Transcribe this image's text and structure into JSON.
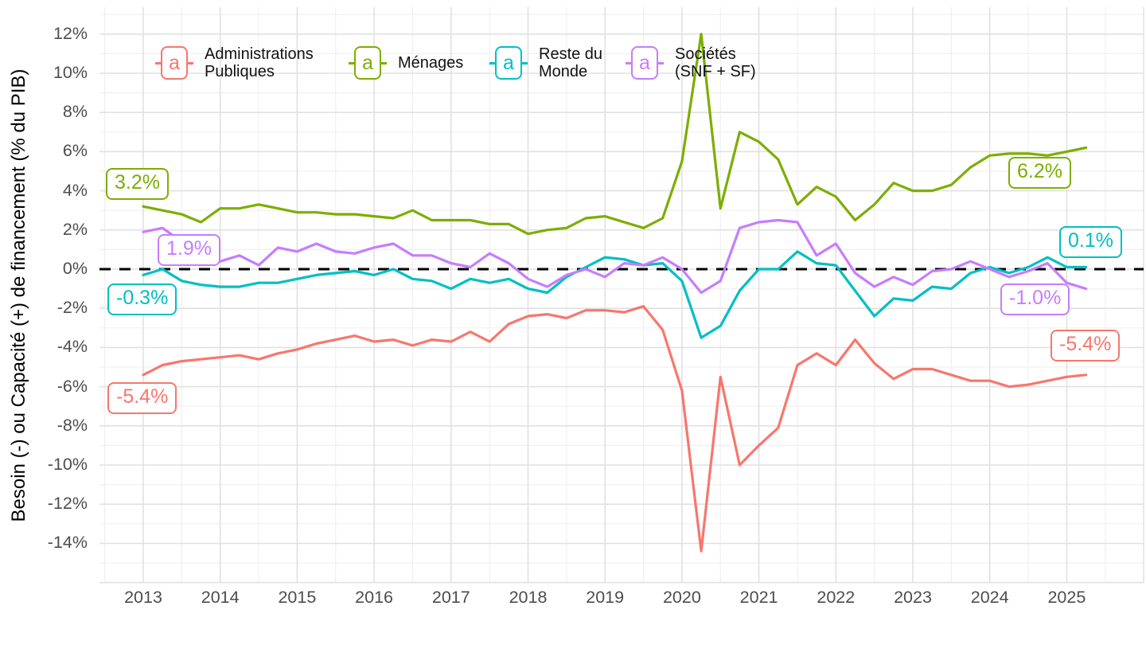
{
  "chart_data": {
    "type": "line",
    "title": "",
    "xlabel": "",
    "ylabel": "Besoin (-) ou Capacité (+) de financement (% du PIB)",
    "frequency": "quarterly",
    "x_start": "2013-Q1",
    "x_end": "2025-Q2",
    "x_tick_labels": [
      "2013",
      "2014",
      "2015",
      "2016",
      "2017",
      "2018",
      "2019",
      "2020",
      "2021",
      "2022",
      "2023",
      "2024",
      "2025"
    ],
    "y_tick_labels": [
      "12%",
      "10%",
      "8%",
      "6%",
      "4%",
      "2%",
      "0%",
      "-2%",
      "-4%",
      "-6%",
      "-8%",
      "-10%",
      "-12%",
      "-14%"
    ],
    "y_ticks_pct": [
      12,
      10,
      8,
      6,
      4,
      2,
      0,
      -2,
      -4,
      -6,
      -8,
      -10,
      -12,
      -14
    ],
    "ylim": [
      -16,
      13.4
    ],
    "grid": {
      "major_color": "#E1E1E1",
      "minor_color": "#F0F0F0",
      "background": "#FFFFFF"
    },
    "zero_line": {
      "value": 0,
      "style": "dashed",
      "color": "#000000"
    },
    "legend_position": "top",
    "series": [
      {
        "name": "Administrations Publiques",
        "slug": "administrations-publiques",
        "color": "#F8766D",
        "start_label": "-5.4%",
        "end_label": "-5.4%",
        "values": [
          -5.4,
          -4.9,
          -4.7,
          -4.6,
          -4.5,
          -4.4,
          -4.6,
          -4.3,
          -4.1,
          -3.8,
          -3.6,
          -3.4,
          -3.7,
          -3.6,
          -3.9,
          -3.6,
          -3.7,
          -3.2,
          -3.7,
          -2.8,
          -2.4,
          -2.3,
          -2.5,
          -2.1,
          -2.1,
          -2.2,
          -1.9,
          -3.1,
          -6.2,
          -14.4,
          -5.5,
          -10.0,
          -9.0,
          -8.1,
          -4.9,
          -4.3,
          -4.9,
          -3.6,
          -4.8,
          -5.6,
          -5.1,
          -5.1,
          -5.4,
          -5.7,
          -5.7,
          -6.0,
          -5.9,
          -5.7,
          -5.5,
          -5.4
        ]
      },
      {
        "name": "Ménages",
        "slug": "menages",
        "color": "#7CAE00",
        "start_label": "3.2%",
        "end_label": "6.2%",
        "values": [
          3.2,
          3.0,
          2.8,
          2.4,
          3.1,
          3.1,
          3.3,
          3.1,
          2.9,
          2.9,
          2.8,
          2.8,
          2.7,
          2.6,
          3.0,
          2.5,
          2.5,
          2.5,
          2.3,
          2.3,
          1.8,
          2.0,
          2.1,
          2.6,
          2.7,
          2.4,
          2.1,
          2.6,
          5.5,
          12.0,
          3.1,
          7.0,
          6.5,
          5.6,
          3.3,
          4.2,
          3.7,
          2.5,
          3.3,
          4.4,
          4.0,
          4.0,
          4.3,
          5.2,
          5.8,
          5.9,
          5.9,
          5.8,
          6.0,
          6.2
        ]
      },
      {
        "name": "Reste du Monde",
        "slug": "reste-du-monde",
        "color": "#00BFC4",
        "start_label": "-0.3%",
        "end_label": "0.1%",
        "values": [
          -0.3,
          0.0,
          -0.6,
          -0.8,
          -0.9,
          -0.9,
          -0.7,
          -0.7,
          -0.5,
          -0.3,
          -0.2,
          -0.1,
          -0.3,
          0.0,
          -0.5,
          -0.6,
          -1.0,
          -0.5,
          -0.7,
          -0.5,
          -1.0,
          -1.2,
          -0.4,
          0.1,
          0.6,
          0.5,
          0.2,
          0.3,
          -0.6,
          -3.5,
          -2.9,
          -1.1,
          0.0,
          0.0,
          0.9,
          0.3,
          0.2,
          -1.1,
          -2.4,
          -1.5,
          -1.6,
          -0.9,
          -1.0,
          -0.2,
          0.1,
          -0.2,
          0.1,
          0.6,
          0.1,
          0.1
        ]
      },
      {
        "name": "Sociétés (SNF + SF)",
        "slug": "societes-snf-sf",
        "color": "#C77CFF",
        "start_label": "1.9%",
        "end_label": "-1.0%",
        "values": [
          1.9,
          2.1,
          1.4,
          0.8,
          0.4,
          0.7,
          0.2,
          1.1,
          0.9,
          1.3,
          0.9,
          0.8,
          1.1,
          1.3,
          0.7,
          0.7,
          0.3,
          0.1,
          0.8,
          0.3,
          -0.5,
          -0.9,
          -0.3,
          0.0,
          -0.4,
          0.3,
          0.2,
          0.6,
          0.0,
          -1.2,
          -0.6,
          2.1,
          2.4,
          2.5,
          2.4,
          0.7,
          1.3,
          -0.2,
          -0.9,
          -0.4,
          -0.8,
          -0.1,
          0.0,
          0.4,
          0.0,
          -0.4,
          -0.1,
          0.3,
          -0.7,
          -1.0
        ]
      }
    ],
    "legend": {
      "key_glyph": "a",
      "items": [
        {
          "label": "Administrations\nPubliques",
          "color": "#F8766D"
        },
        {
          "label": "Ménages",
          "color": "#7CAE00"
        },
        {
          "label": "Reste du\nMonde",
          "color": "#00BFC4"
        },
        {
          "label": "Sociétés\n(SNF + SF)",
          "color": "#C77CFF"
        }
      ]
    }
  }
}
